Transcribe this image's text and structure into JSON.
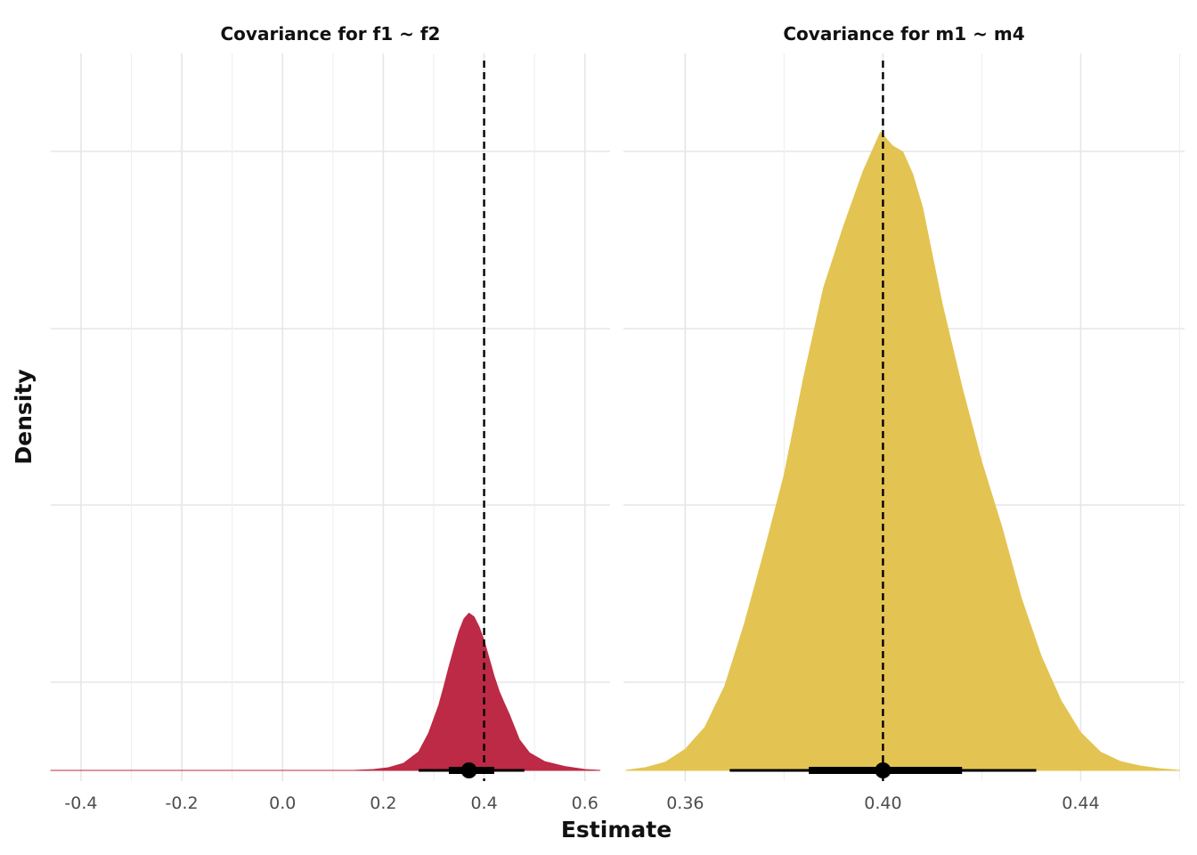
{
  "chart_data": {
    "type": "area",
    "ylabel": "Density",
    "xlabel": "Estimate",
    "grid": true,
    "panels": [
      {
        "title": "Covariance for f1 ~ f2",
        "color": "#BC2A45",
        "xlim": [
          -0.46,
          0.65
        ],
        "x_ticks": [
          -0.4,
          -0.2,
          0.0,
          0.2,
          0.4,
          0.6
        ],
        "x_tick_labels": [
          "-0.4",
          "-0.2",
          "0.0",
          "0.2",
          "0.4",
          "0.6"
        ],
        "reference_line": 0.4,
        "point_estimate": 0.37,
        "interval_inner": [
          0.33,
          0.42
        ],
        "interval_outer": [
          0.27,
          0.48
        ],
        "density": {
          "x": [
            -0.46,
            0.14,
            0.18,
            0.21,
            0.24,
            0.27,
            0.29,
            0.31,
            0.32,
            0.33,
            0.34,
            0.35,
            0.36,
            0.37,
            0.38,
            0.39,
            0.4,
            0.41,
            0.42,
            0.43,
            0.44,
            0.45,
            0.47,
            0.49,
            0.52,
            0.56,
            0.6,
            0.63
          ],
          "y": [
            0,
            0,
            0.2,
            0.6,
            1.6,
            4.2,
            8.5,
            14.8,
            19.0,
            23.5,
            27.6,
            31.6,
            34.5,
            35.8,
            35.0,
            32.7,
            29.5,
            25.5,
            21.4,
            18.0,
            15.3,
            12.8,
            7.0,
            4.0,
            2.0,
            0.9,
            0.2,
            0
          ]
        }
      },
      {
        "title": "Covariance for m1 ~ m4",
        "color": "#E3C452",
        "xlim": [
          0.3475,
          0.461
        ],
        "x_ticks": [
          0.36,
          0.4,
          0.44
        ],
        "x_tick_labels": [
          "0.36",
          "0.40",
          "0.44"
        ],
        "reference_line": 0.4,
        "point_estimate": 0.4,
        "interval_inner": [
          0.385,
          0.416
        ],
        "interval_outer": [
          0.369,
          0.431
        ],
        "density": {
          "x": [
            0.348,
            0.352,
            0.356,
            0.36,
            0.364,
            0.368,
            0.372,
            0.376,
            0.38,
            0.384,
            0.388,
            0.392,
            0.396,
            0.3995,
            0.402,
            0.404,
            0.406,
            0.408,
            0.412,
            0.416,
            0.42,
            0.424,
            0.428,
            0.432,
            0.436,
            0.44,
            0.444,
            0.448,
            0.452,
            0.456,
            0.46
          ],
          "y": [
            0,
            0.5,
            1.5,
            3.8,
            7.8,
            15.2,
            26.5,
            39.5,
            53.2,
            71.0,
            87.0,
            98.0,
            108.0,
            115.0,
            112.5,
            111.5,
            107.5,
            101.5,
            84.0,
            69.0,
            55.5,
            44.0,
            31.0,
            20.6,
            12.6,
            6.8,
            3.3,
            1.6,
            0.8,
            0.3,
            0
          ]
        }
      }
    ]
  }
}
